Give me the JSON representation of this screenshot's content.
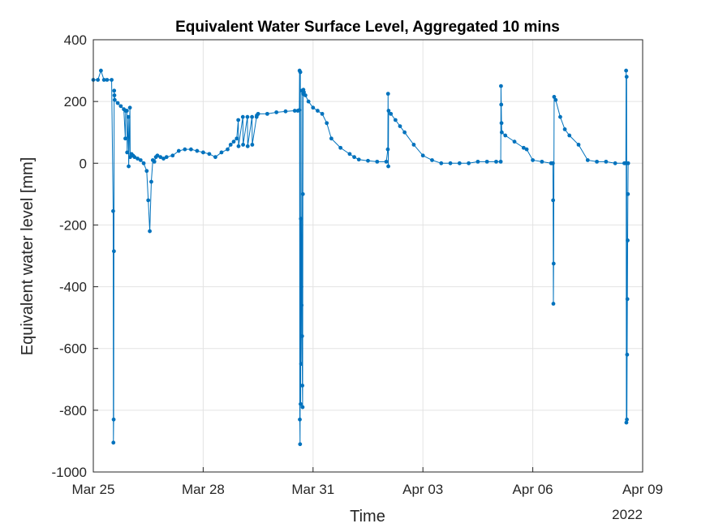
{
  "chart_data": {
    "type": "line",
    "title": "Equivalent Water Surface Level, Aggregated 10 mins",
    "xlabel": "Time",
    "ylabel": "Equivalent water level [mm]",
    "x_secondary_label": "2022",
    "xlim": [
      "2022-03-25",
      "2022-04-09"
    ],
    "ylim": [
      -1000,
      400
    ],
    "x_ticks": [
      {
        "date": "2022-03-25",
        "label": "Mar 25"
      },
      {
        "date": "2022-03-28",
        "label": "Mar 28"
      },
      {
        "date": "2022-03-31",
        "label": "Mar 31"
      },
      {
        "date": "2022-04-03",
        "label": "Apr 03"
      },
      {
        "date": "2022-04-06",
        "label": "Apr 06"
      },
      {
        "date": "2022-04-09",
        "label": "Apr 09"
      }
    ],
    "y_ticks": [
      400,
      200,
      0,
      -200,
      -400,
      -600,
      -800,
      -1000
    ],
    "grid": true,
    "line_color": "#0072BD",
    "series": [
      {
        "marker": "dot",
        "x": [
          "2022-03-25 00:00",
          "2022-03-25 03:00",
          "2022-03-25 05:00",
          "2022-03-25 07:00",
          "2022-03-25 09:00",
          "2022-03-25 12:00",
          "2022-03-25 13:00",
          "2022-03-25 13:10",
          "2022-03-25 13:20",
          "2022-03-25 13:30",
          "2022-03-25 13:40",
          "2022-03-25 13:50",
          "2022-03-25 14:00",
          "2022-03-25 16:00",
          "2022-03-25 18:00",
          "2022-03-25 20:00",
          "2022-03-25 21:00",
          "2022-03-25 21:10",
          "2022-03-25 22:00",
          "2022-03-25 22:10",
          "2022-03-25 23:00",
          "2022-03-25 23:10",
          "2022-03-26 00:00",
          "2022-03-26 00:10",
          "2022-03-26 01:00",
          "2022-03-26 02:00",
          "2022-03-26 03:00",
          "2022-03-26 05:00",
          "2022-03-26 07:00",
          "2022-03-26 09:00",
          "2022-03-26 11:00",
          "2022-03-26 12:00",
          "2022-03-26 13:00",
          "2022-03-26 14:00",
          "2022-03-26 15:00",
          "2022-03-26 16:00",
          "2022-03-26 17:00",
          "2022-03-26 18:00",
          "2022-03-26 20:00",
          "2022-03-26 22:00",
          "2022-03-27 00:00",
          "2022-03-27 04:00",
          "2022-03-27 08:00",
          "2022-03-27 12:00",
          "2022-03-27 16:00",
          "2022-03-27 20:00",
          "2022-03-28 00:00",
          "2022-03-28 04:00",
          "2022-03-28 08:00",
          "2022-03-28 12:00",
          "2022-03-28 16:00",
          "2022-03-28 18:00",
          "2022-03-28 20:00",
          "2022-03-28 22:00",
          "2022-03-28 23:00",
          "2022-03-28 23:10",
          "2022-03-29 02:00",
          "2022-03-29 02:10",
          "2022-03-29 05:00",
          "2022-03-29 05:10",
          "2022-03-29 08:00",
          "2022-03-29 08:10",
          "2022-03-29 11:00",
          "2022-03-29 11:10",
          "2022-03-29 12:00",
          "2022-03-29 18:00",
          "2022-03-30 00:00",
          "2022-03-30 06:00",
          "2022-03-30 12:00",
          "2022-03-30 14:00",
          "2022-03-30 15:00",
          "2022-03-30 15:10",
          "2022-03-30 15:20",
          "2022-03-30 15:30",
          "2022-03-30 15:40",
          "2022-03-30 15:50",
          "2022-03-30 16:00",
          "2022-03-30 16:10",
          "2022-03-30 16:20",
          "2022-03-30 16:30",
          "2022-03-30 16:40",
          "2022-03-30 16:50",
          "2022-03-30 17:00",
          "2022-03-30 17:10",
          "2022-03-30 17:20",
          "2022-03-30 17:30",
          "2022-03-30 17:40",
          "2022-03-30 18:00",
          "2022-03-30 19:00",
          "2022-03-30 21:00",
          "2022-03-31 00:00",
          "2022-03-31 03:00",
          "2022-03-31 06:00",
          "2022-03-31 09:00",
          "2022-03-31 12:00",
          "2022-03-31 18:00",
          "2022-04-01 00:00",
          "2022-04-01 03:00",
          "2022-04-01 06:00",
          "2022-04-01 12:00",
          "2022-04-01 18:00",
          "2022-04-02 00:00",
          "2022-04-02 01:00",
          "2022-04-02 01:10",
          "2022-04-02 01:20",
          "2022-04-02 01:30",
          "2022-04-02 03:00",
          "2022-04-02 06:00",
          "2022-04-02 09:00",
          "2022-04-02 12:00",
          "2022-04-02 18:00",
          "2022-04-03 00:00",
          "2022-04-03 06:00",
          "2022-04-03 12:00",
          "2022-04-03 18:00",
          "2022-04-04 00:00",
          "2022-04-04 06:00",
          "2022-04-04 12:00",
          "2022-04-04 18:00",
          "2022-04-05 00:00",
          "2022-04-05 03:00",
          "2022-04-05 03:10",
          "2022-04-05 03:20",
          "2022-04-05 03:30",
          "2022-04-05 03:40",
          "2022-04-05 06:00",
          "2022-04-05 12:00",
          "2022-04-05 18:00",
          "2022-04-05 20:00",
          "2022-04-06 00:00",
          "2022-04-06 06:00",
          "2022-04-06 12:00",
          "2022-04-06 13:00",
          "2022-04-06 13:10",
          "2022-04-06 13:20",
          "2022-04-06 13:30",
          "2022-04-06 13:40",
          "2022-04-06 14:00",
          "2022-04-06 15:00",
          "2022-04-06 18:00",
          "2022-04-06 21:00",
          "2022-04-07 00:00",
          "2022-04-07 06:00",
          "2022-04-07 12:00",
          "2022-04-07 18:00",
          "2022-04-08 00:00",
          "2022-04-08 06:00",
          "2022-04-08 12:00",
          "2022-04-08 13:00",
          "2022-04-08 13:10",
          "2022-04-08 13:20",
          "2022-04-08 13:30",
          "2022-04-08 13:40",
          "2022-04-08 13:50",
          "2022-04-08 14:00",
          "2022-04-08 14:10",
          "2022-04-08 14:20",
          "2022-04-08 14:30"
        ],
        "y": [
          270,
          270,
          300,
          270,
          270,
          270,
          -155,
          -905,
          -830,
          -285,
          235,
          220,
          205,
          195,
          185,
          175,
          80,
          170,
          170,
          35,
          150,
          -10,
          180,
          20,
          30,
          25,
          20,
          15,
          10,
          0,
          -25,
          -120,
          -220,
          -60,
          10,
          5,
          20,
          25,
          20,
          15,
          20,
          25,
          40,
          45,
          45,
          40,
          35,
          30,
          20,
          35,
          45,
          60,
          70,
          80,
          140,
          55,
          150,
          60,
          150,
          55,
          150,
          60,
          150,
          155,
          160,
          160,
          165,
          168,
          170,
          170,
          172,
          300,
          -830,
          -910,
          295,
          -780,
          -180,
          -650,
          -400,
          -460,
          235,
          -560,
          -720,
          -790,
          -100,
          225,
          238,
          230,
          220,
          200,
          180,
          170,
          160,
          130,
          80,
          50,
          30,
          20,
          12,
          8,
          5,
          5,
          45,
          225,
          -10,
          170,
          160,
          140,
          120,
          100,
          60,
          25,
          10,
          0,
          0,
          0,
          0,
          5,
          5,
          5,
          5,
          250,
          190,
          130,
          100,
          90,
          70,
          50,
          45,
          10,
          5,
          0,
          0,
          0,
          -120,
          -455,
          -325,
          215,
          205,
          150,
          110,
          90,
          60,
          10,
          5,
          5,
          0,
          0,
          0,
          300,
          -840,
          280,
          -830,
          -620,
          -440,
          -250,
          -100,
          0
        ]
      }
    ]
  }
}
